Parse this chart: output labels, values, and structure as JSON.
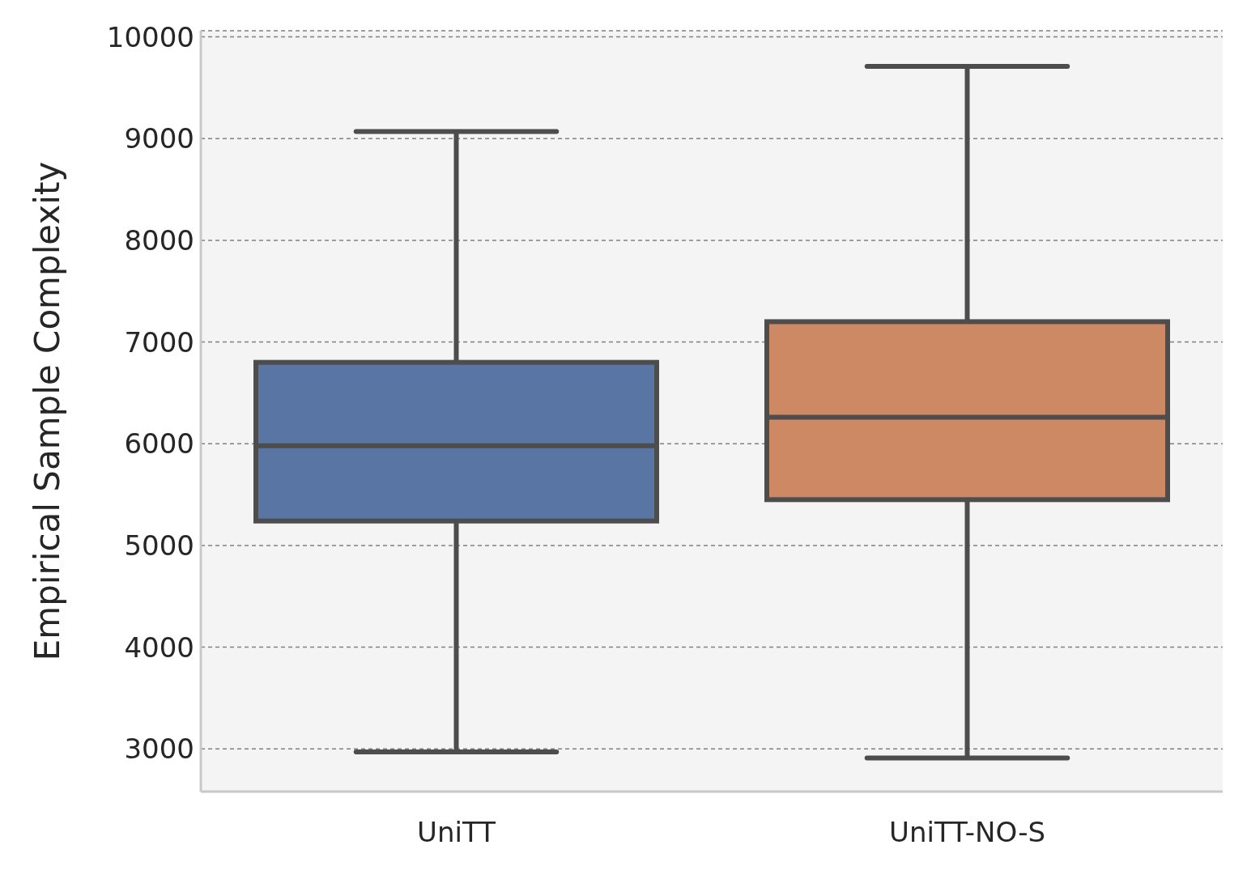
{
  "chart_data": {
    "type": "box",
    "ylabel": "Empirical Sample Complexity",
    "categories": [
      "UniTT",
      "UniTT-NO-S"
    ],
    "boxes": [
      {
        "low": 2970,
        "q1": 5240,
        "median": 5980,
        "q3": 6800,
        "high": 9070
      },
      {
        "low": 2910,
        "q1": 5450,
        "median": 6260,
        "q3": 7200,
        "high": 9710
      }
    ],
    "colors": [
      "#5975a4",
      "#cc8963"
    ],
    "ylim": [
      2580,
      10060
    ],
    "yticks": [
      3000,
      4000,
      5000,
      6000,
      7000,
      8000,
      9000,
      10000
    ],
    "grid": "y"
  }
}
